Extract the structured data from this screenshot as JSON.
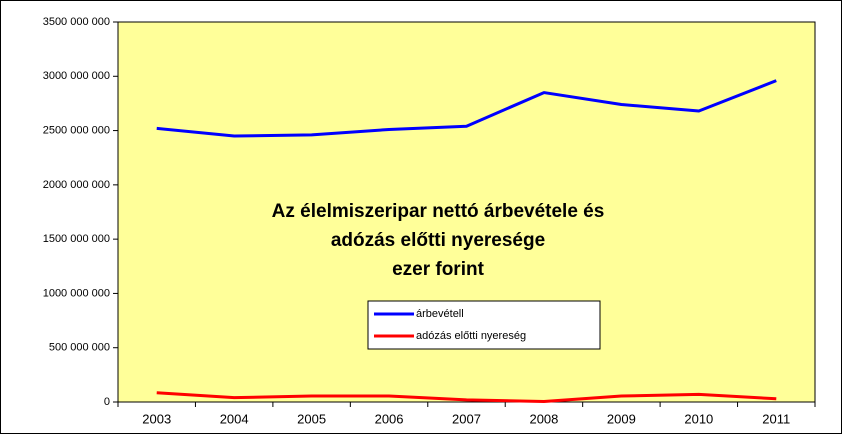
{
  "chart_data": {
    "type": "line",
    "title": [
      "Az élelmiszeripar nettó árbevétele és",
      "adózás előtti nyeresége",
      "ezer forint"
    ],
    "categories": [
      "2003",
      "2004",
      "2005",
      "2006",
      "2007",
      "2008",
      "2009",
      "2010",
      "2011"
    ],
    "series": [
      {
        "name": "árbevétell",
        "color": "#0000ff",
        "values": [
          2520000000,
          2450000000,
          2460000000,
          2510000000,
          2540000000,
          2850000000,
          2740000000,
          2680000000,
          2960000000
        ]
      },
      {
        "name": "adózás előtti nyereség",
        "color": "#ff0000",
        "values": [
          85000000,
          40000000,
          55000000,
          55000000,
          20000000,
          5000000,
          55000000,
          70000000,
          30000000
        ]
      }
    ],
    "ylim": [
      0,
      3500000000
    ],
    "yticks": [
      {
        "value": 0,
        "label": "0"
      },
      {
        "value": 500000000,
        "label": "500 000 000"
      },
      {
        "value": 1000000000,
        "label": "1000 000 000"
      },
      {
        "value": 1500000000,
        "label": "1500 000 000"
      },
      {
        "value": 2000000000,
        "label": "2000 000 000"
      },
      {
        "value": 2500000000,
        "label": "2500 000 000"
      },
      {
        "value": 3000000000,
        "label": "3000 000 000"
      },
      {
        "value": 3500000000,
        "label": "3500 000 000"
      }
    ],
    "plot_background": "#ffff99"
  }
}
